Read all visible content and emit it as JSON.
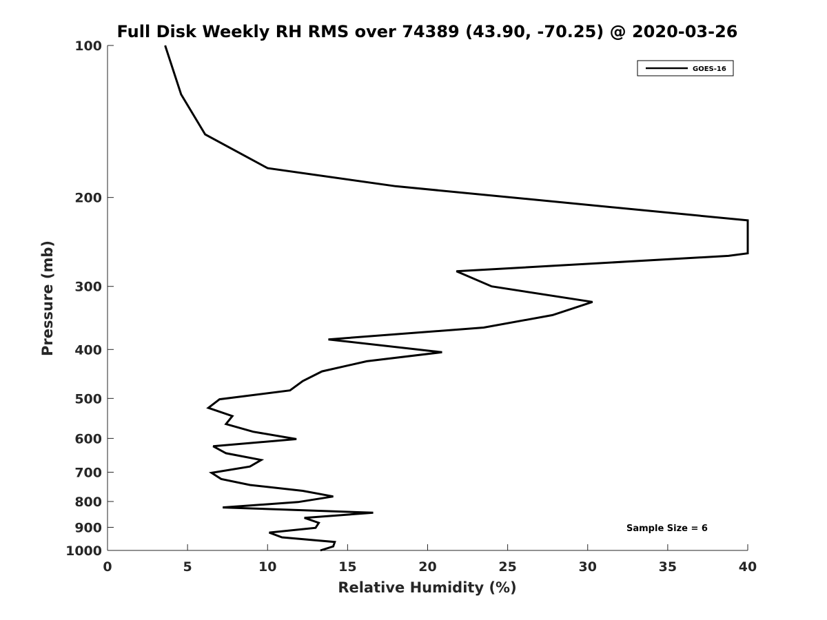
{
  "chart_data": {
    "type": "line",
    "title": "Full Disk Weekly RH RMS over 74389 (43.90, -70.25) @ 2020-03-26",
    "xlabel": "Relative Humidity (%)",
    "ylabel": "Pressure (mb)",
    "xlim": [
      0,
      40
    ],
    "ylim": [
      100,
      1000
    ],
    "y_scale": "log",
    "y_reversed": true,
    "grid": false,
    "legend_position": "top-right",
    "x_ticks": [
      0,
      5,
      10,
      15,
      20,
      25,
      30,
      35,
      40
    ],
    "y_ticks": [
      100,
      200,
      300,
      400,
      500,
      600,
      700,
      800,
      900,
      1000
    ],
    "annotation": "Sample Size = 6",
    "series": [
      {
        "name": "GOES-16",
        "color": "#000000",
        "points": [
          [
            3.6,
            100
          ],
          [
            4.6,
            125
          ],
          [
            6.1,
            150
          ],
          [
            10.0,
            175
          ],
          [
            18.0,
            190
          ],
          [
            40.0,
            222
          ],
          [
            40.0,
            258
          ],
          [
            38.8,
            261
          ],
          [
            21.8,
            280
          ],
          [
            24.0,
            300
          ],
          [
            30.3,
            322
          ],
          [
            27.8,
            342
          ],
          [
            23.5,
            362
          ],
          [
            13.8,
            382
          ],
          [
            20.9,
            405
          ],
          [
            16.2,
            422
          ],
          [
            13.4,
            442
          ],
          [
            12.2,
            462
          ],
          [
            11.4,
            482
          ],
          [
            7.0,
            502
          ],
          [
            6.3,
            522
          ],
          [
            7.8,
            542
          ],
          [
            7.4,
            562
          ],
          [
            9.1,
            582
          ],
          [
            11.8,
            602
          ],
          [
            6.6,
            622
          ],
          [
            7.4,
            642
          ],
          [
            9.6,
            662
          ],
          [
            8.9,
            682
          ],
          [
            6.5,
            702
          ],
          [
            7.1,
            722
          ],
          [
            8.9,
            742
          ],
          [
            12.2,
            762
          ],
          [
            14.1,
            782
          ],
          [
            11.9,
            802
          ],
          [
            7.2,
            822
          ],
          [
            16.6,
            842
          ],
          [
            12.3,
            862
          ],
          [
            13.2,
            882
          ],
          [
            13.0,
            902
          ],
          [
            10.1,
            922
          ],
          [
            10.9,
            942
          ],
          [
            14.2,
            962
          ],
          [
            14.1,
            982
          ],
          [
            13.3,
            1000
          ]
        ]
      }
    ]
  }
}
